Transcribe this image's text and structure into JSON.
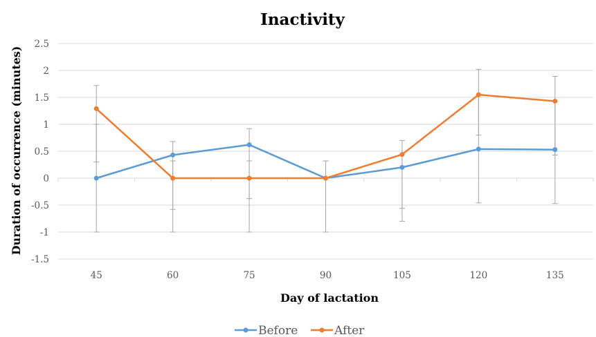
{
  "chart_data": {
    "type": "line",
    "title": "Inactivity",
    "xlabel": "Day of lactation",
    "ylabel": "Duration of occurrence (minutes)",
    "categories": [
      "45",
      "60",
      "75",
      "90",
      "105",
      "120",
      "135"
    ],
    "ylim": [
      -1.5,
      2.5
    ],
    "yticks": [
      2.5,
      2,
      1.5,
      1,
      0.5,
      0,
      -0.5,
      -1,
      -1.5
    ],
    "ytick_labels": [
      "2.5",
      "2",
      "1.5",
      "1",
      "0.5",
      "0",
      "-0.5",
      "-1",
      "-1.5"
    ],
    "grid": true,
    "legend_position": "bottom",
    "series": [
      {
        "name": "Before",
        "color": "#5b9bd5",
        "values": [
          0,
          0.43,
          0.62,
          0,
          0.2,
          0.54,
          0.53
        ],
        "error_low": [
          -1,
          -0.58,
          -0.38,
          -1,
          -0.8,
          -0.46,
          -0.47
        ],
        "error_high": [
          1,
          0.68,
          0.92,
          0.32,
          0.7,
          2.02,
          1.89
        ]
      },
      {
        "name": "After",
        "color": "#ed7d31",
        "values": [
          1.29,
          0,
          0,
          0,
          0.44,
          1.55,
          1.43
        ],
        "error_low": [
          0.3,
          -1,
          -1,
          -1,
          -0.56,
          0.8,
          0.43
        ],
        "error_high": [
          1.72,
          0.32,
          0.32,
          0.32,
          0.44,
          1.55,
          1.43
        ]
      }
    ]
  }
}
